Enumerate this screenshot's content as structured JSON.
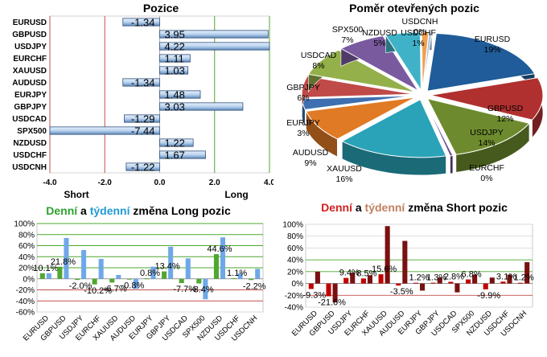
{
  "colors": {
    "bar_fill": "#c6dbf4",
    "bar_stroke": "#2f4f7a",
    "red_line": "#c0504d",
    "green_line": "#4ea72e",
    "long_title": "#2ea12e",
    "weekly_title": "#1f9ad6",
    "short_title": "#d42020",
    "weekly_short_title": "#c08060"
  },
  "chart_data": [
    {
      "type": "bar",
      "orientation": "horizontal",
      "title": "Pozice",
      "categories": [
        "EURUSD",
        "GBPUSD",
        "USDJPY",
        "EURCHF",
        "XAUUSD",
        "AUDUSD",
        "EURJPY",
        "GBPJPY",
        "USDCAD",
        "SPX500",
        "NZDUSD",
        "USDCHF",
        "USDCNH"
      ],
      "values": [
        -1.34,
        3.95,
        4.22,
        1.11,
        1.03,
        -1.34,
        1.48,
        3.03,
        -1.29,
        -7.44,
        1.22,
        1.67,
        -1.22
      ],
      "value_labels": [
        "-1.34",
        "3.95",
        "4.22",
        "1.11",
        "1.03",
        "-1.34",
        "1.48",
        "3.03",
        "-1.29",
        "-7.44",
        "1.22",
        "1.67",
        "-1.22"
      ],
      "xlim": [
        -4,
        4
      ],
      "xticks": [
        "-4.0",
        "-2.0",
        "0.0",
        "2.0",
        "4.0"
      ],
      "annotations": {
        "short": "Short",
        "long": "Long"
      }
    },
    {
      "type": "pie",
      "title": "Poměr  otevřených pozic",
      "slices": [
        {
          "label": "EURUSD",
          "pct": "19%",
          "value": 19,
          "color": "#1f5c99"
        },
        {
          "label": "GBPUSD",
          "pct": "12%",
          "value": 12,
          "color": "#b03030"
        },
        {
          "label": "USDJPY",
          "pct": "14%",
          "value": 14,
          "color": "#6d8b2e"
        },
        {
          "label": "EURCHF",
          "pct": "0%",
          "value": 0.4,
          "color": "#6a4a8a"
        },
        {
          "label": "XAUUSD",
          "pct": "16%",
          "value": 16,
          "color": "#2aa3b8"
        },
        {
          "label": "AUDUSD",
          "pct": "9%",
          "value": 9,
          "color": "#e07a25"
        },
        {
          "label": "EURJPY",
          "pct": "3%",
          "value": 3,
          "color": "#3e6fb0"
        },
        {
          "label": "GBPJPY",
          "pct": "6%",
          "value": 6,
          "color": "#c04a48"
        },
        {
          "label": "USDCAD",
          "pct": "8%",
          "value": 8,
          "color": "#94b04a"
        },
        {
          "label": "SPX500",
          "pct": "7%",
          "value": 7,
          "color": "#7a5a9e"
        },
        {
          "label": "NZDUSD",
          "pct": "5%",
          "value": 5,
          "color": "#40b2c8"
        },
        {
          "label": "USDCHF",
          "pct": "1%",
          "value": 1,
          "color": "#f0a050"
        },
        {
          "label": "USDCNH",
          "pct": "0%",
          "value": 0.4,
          "color": "#9fbfe0"
        }
      ]
    },
    {
      "type": "bar",
      "title_parts": [
        "Denní",
        " a ",
        "týdenní",
        " změna Long pozic"
      ],
      "categories": [
        "EURUSD",
        "GBPUSD",
        "USDJPY",
        "EURCHF",
        "XAUUSD",
        "AUDUSD",
        "EURJPY",
        "GBPJPY",
        "USDCAD",
        "SPX500",
        "NZDUSD",
        "USDCHF",
        "USDCNH"
      ],
      "series": [
        {
          "values": [
            10.1,
            21.8,
            -2.0,
            -10.2,
            -6.7,
            -0.8,
            0.8,
            13.4,
            -7.7,
            -8.4,
            44.6,
            1.1,
            -2.2
          ],
          "color": "#4ea72e"
        },
        {
          "values": [
            10.0,
            74.0,
            52.0,
            36.0,
            7.0,
            -18.0,
            22.0,
            58.0,
            37.0,
            -37.0,
            75.0,
            10.0,
            18.0
          ],
          "color": "#6fa8e8"
        }
      ],
      "labels": [
        "10.1%",
        "21.8%",
        "-2.0%",
        "-10.2%",
        "-6.7%",
        "-0.8%",
        "0.8%",
        "13.4%",
        "-7.7%",
        "-8.4%",
        "44.6%",
        "1.1%",
        "-2.2%"
      ],
      "ylim": [
        -60,
        100
      ],
      "yticks": [
        "100%",
        "80%",
        "60%",
        "40%",
        "20%",
        "0%",
        "-20%",
        "-40%",
        "-60%"
      ]
    },
    {
      "type": "bar",
      "title_parts": [
        "Denní",
        " a ",
        "týdenní",
        " změna Short pozic"
      ],
      "categories": [
        "EURUSD",
        "GBPUSD",
        "USDJPY",
        "EURCHF",
        "XAUUSD",
        "AUDUSD",
        "EURJPY",
        "GBPJPY",
        "USDCAD",
        "SPX500",
        "NZDUSD",
        "USDCHF",
        "USDCNH"
      ],
      "series": [
        {
          "values": [
            -9.3,
            -21.6,
            9.4,
            8.5,
            15.6,
            -3.5,
            1.2,
            1.3,
            2.8,
            6.8,
            -9.9,
            3.1,
            1.2
          ],
          "color": "#c00000"
        },
        {
          "values": [
            20.0,
            -32.0,
            18.0,
            14.0,
            97.0,
            72.0,
            -12.0,
            10.0,
            -15.0,
            15.0,
            10.0,
            15.0,
            36.0
          ],
          "color": "#7a1010"
        }
      ],
      "labels": [
        "-9.3%",
        "-21.6%",
        "9.4%",
        "8.5%",
        "15.6%",
        "-3.5%",
        "1.2%",
        "1.3%",
        "2.8%",
        "6.8%",
        "-9.9%",
        "3.1%",
        "1.2%"
      ],
      "ylim": [
        -40,
        100
      ],
      "yticks": [
        "100%",
        "80%",
        "60%",
        "40%",
        "20%",
        "0%",
        "-20%",
        "-40%"
      ]
    }
  ]
}
